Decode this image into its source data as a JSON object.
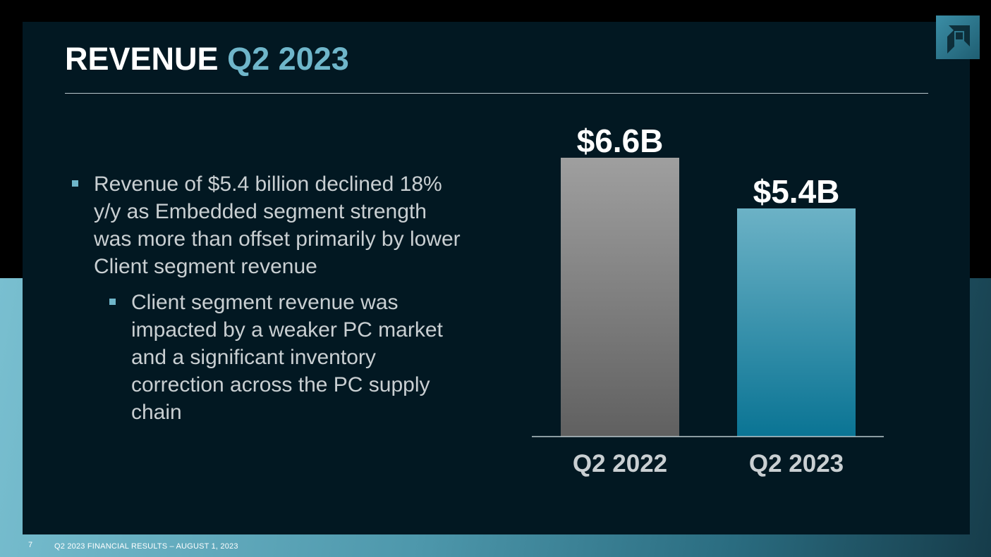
{
  "slide": {
    "title_main": "REVENUE",
    "title_accent": "Q2 2023",
    "bullets": [
      "Revenue of $5.4 billion declined 18% y/y as Embedded segment strength was more than offset primarily by lower Client segment revenue",
      "Client segment revenue was impacted by a weaker PC market and a significant inventory correction across the PC supply chain"
    ],
    "footer": {
      "page_number": "7",
      "text": "Q2 2023 FINANCIAL RESULTS – AUGUST 1, 2023"
    }
  },
  "colors": {
    "accent": "#6fb6ca",
    "bar_q2_2022_top": "#9f9f9f",
    "bar_q2_2022_bottom": "#606060",
    "bar_q2_2023_top": "#6cb2c6",
    "bar_q2_2023_bottom": "#0a7494"
  },
  "icons": {
    "logo": "amd-arrow-logo"
  },
  "chart_data": {
    "type": "bar",
    "categories": [
      "Q2 2022",
      "Q2 2023"
    ],
    "values": [
      6.6,
      5.4
    ],
    "data_labels": [
      "$6.6B",
      "$5.4B"
    ],
    "title": "",
    "xlabel": "",
    "ylabel": "",
    "ylim": [
      0,
      6.6
    ],
    "grid": false,
    "legend": "none"
  }
}
